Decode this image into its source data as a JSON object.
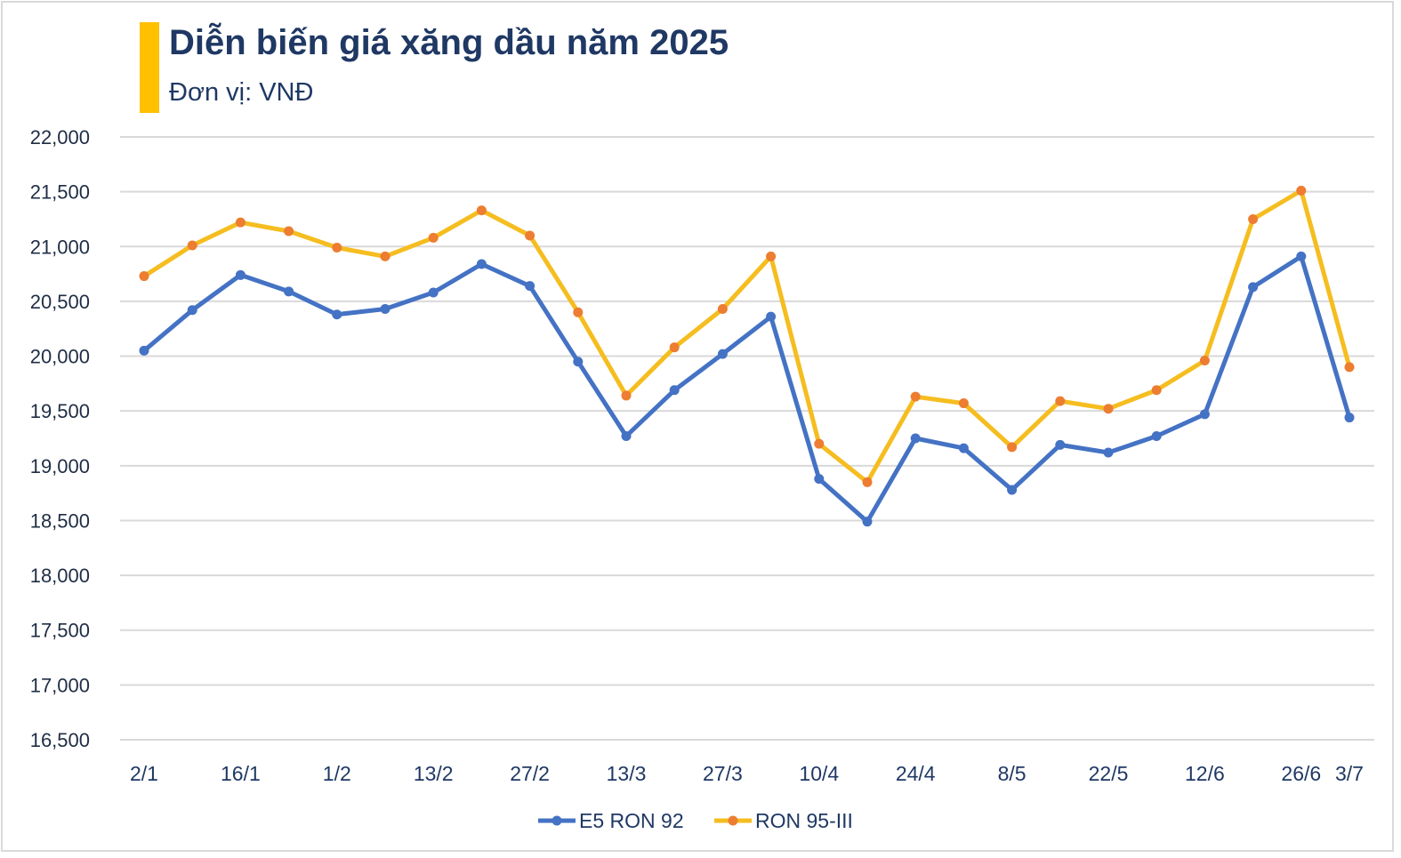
{
  "header": {
    "title": "Diễn biến giá xăng dầu năm 2025",
    "subtitle": "Đơn vị: VNĐ",
    "accent_color": "#ffc000",
    "text_color": "#1f3864"
  },
  "legend": [
    {
      "label": "E5 RON 92",
      "line_color": "#4472c4",
      "marker_color": "#4472c4"
    },
    {
      "label": "RON 95-III",
      "line_color": "#f5bd1f",
      "marker_color": "#ed7d31"
    }
  ],
  "chart_data": {
    "type": "line",
    "title": "Diễn biến giá xăng dầu năm 2025",
    "subtitle": "Đơn vị: VNĐ",
    "xlabel": "",
    "ylabel": "",
    "ylim": [
      16500,
      22000
    ],
    "y_ticks": [
      22000,
      21500,
      21000,
      20500,
      20000,
      19500,
      19000,
      18500,
      18000,
      17500,
      17000,
      16500
    ],
    "y_tick_labels": [
      "22,000",
      "21,500",
      "21,000",
      "20,500",
      "20,000",
      "19,500",
      "19,000",
      "18,500",
      "18,000",
      "17,500",
      "17,000",
      "16,500"
    ],
    "grid": true,
    "legend_position": "bottom",
    "x_tick_labels": [
      {
        "index": 0,
        "label": "2/1"
      },
      {
        "index": 2,
        "label": "16/1"
      },
      {
        "index": 4,
        "label": "1/2"
      },
      {
        "index": 6,
        "label": "13/2"
      },
      {
        "index": 8,
        "label": "27/2"
      },
      {
        "index": 10,
        "label": "13/3"
      },
      {
        "index": 12,
        "label": "27/3"
      },
      {
        "index": 14,
        "label": "10/4"
      },
      {
        "index": 16,
        "label": "24/4"
      },
      {
        "index": 18,
        "label": "8/5"
      },
      {
        "index": 20,
        "label": "22/5"
      },
      {
        "index": 22,
        "label": "12/6"
      },
      {
        "index": 24,
        "label": "26/6"
      },
      {
        "index": 25,
        "label": "3/7"
      }
    ],
    "point_count": 26,
    "series": [
      {
        "name": "E5 RON 92",
        "values": [
          20050,
          20420,
          20740,
          20590,
          20380,
          20430,
          20580,
          20840,
          20640,
          19950,
          19270,
          19690,
          20020,
          20360,
          18880,
          18490,
          19250,
          19160,
          18780,
          19190,
          19120,
          19270,
          19470,
          20630,
          20910,
          19440
        ]
      },
      {
        "name": "RON 95-III",
        "values": [
          20730,
          21010,
          21220,
          21140,
          20990,
          20910,
          21080,
          21330,
          21100,
          20400,
          19640,
          20080,
          20430,
          20910,
          19200,
          18850,
          19630,
          19570,
          19170,
          19590,
          19520,
          19690,
          19960,
          21250,
          21510,
          19900
        ]
      }
    ]
  }
}
